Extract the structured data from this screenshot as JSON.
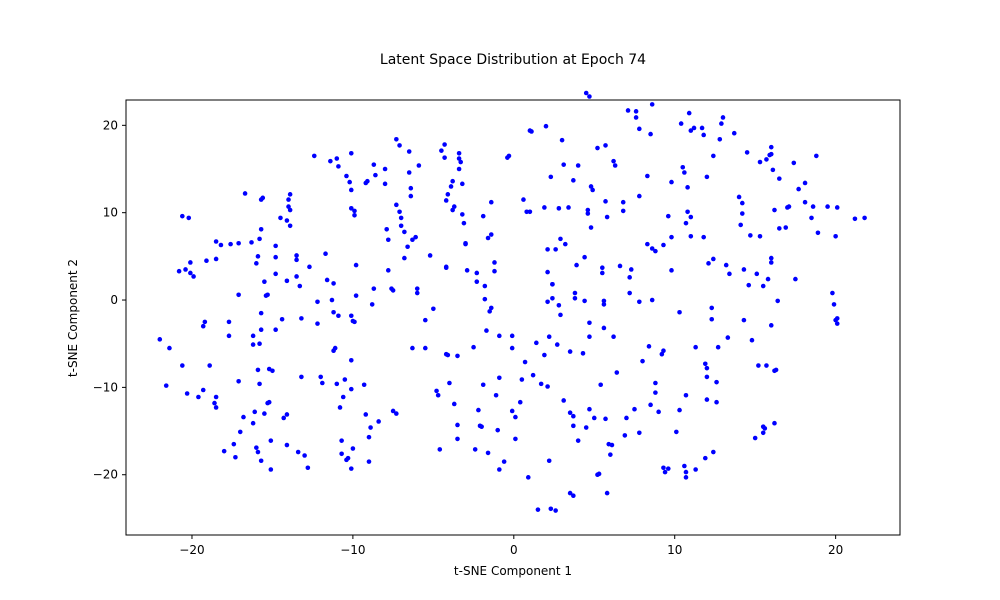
{
  "chart_data": {
    "type": "scatter",
    "title": "Latent Space Distribution at Epoch 74",
    "xlabel": "t-SNE Component 1",
    "ylabel": "t-SNE Component 2",
    "color": "blue",
    "grid": false,
    "xlim": [
      -24.1,
      24.0
    ],
    "ylim": [
      -26.9,
      22.9
    ],
    "xticks": [
      {
        "value": -20,
        "label": "−20"
      },
      {
        "value": -10,
        "label": "−10"
      },
      0,
      10,
      20
    ],
    "yticks": [
      {
        "value": -20,
        "label": "−20"
      },
      {
        "value": -10,
        "label": "−10"
      },
      0,
      10,
      20
    ],
    "x": [
      -22.0,
      -21.4,
      -21.6,
      -20.6,
      -20.3,
      -20.6,
      -20.2,
      -20.1,
      -20.1,
      -19.9,
      -20.8,
      -20.4,
      -19.2,
      -19.3,
      -18.9,
      -19.3,
      -19.6,
      -18.5,
      -18.6,
      -18.5,
      -19.1,
      -18.5,
      -18.5,
      -18.2,
      -17.6,
      -17.7,
      -17.1,
      -17.7,
      -18.0,
      -17.3,
      -17.4,
      -17.1,
      -16.8,
      -17.0,
      -16.7,
      -17.1,
      -16.3,
      -16.2,
      -16.2,
      -16.0,
      -16.2,
      -16.1,
      -16.0,
      -15.7,
      -15.9,
      -15.8,
      -15.9,
      -15.7,
      -15.8,
      -15.9,
      -15.5,
      -15.7,
      -15.7,
      -15.8,
      -15.7,
      -15.6,
      -15.4,
      -15.3,
      -15.3,
      -15.5,
      -15.2,
      -15.2,
      -15.0,
      -15.1,
      -15.1,
      -14.8,
      -14.8,
      -14.8,
      -14.5,
      -14.8,
      -14.4,
      -14.1,
      -14.0,
      -14.0,
      -14.1,
      -13.9,
      -13.9,
      -13.9,
      -14.3,
      -14.1,
      -14.1,
      -13.5,
      -13.5,
      -13.5,
      -13.3,
      -13.2,
      -13.2,
      -13.0,
      -13.4,
      -12.8,
      -12.7,
      -12.4,
      -12.2,
      -12.2,
      -11.9,
      -12.0,
      -11.7,
      -11.6,
      -11.2,
      -11.3,
      -11.2,
      -11.1,
      -11.4,
      -10.9,
      -11.0,
      -11.2,
      -11.0,
      -10.9,
      -10.8,
      -10.7,
      -10.6,
      -10.7,
      -10.5,
      -10.4,
      -10.2,
      -10.1,
      -10.1,
      -10.1,
      -10.1,
      -10.1,
      -10.1,
      -9.9,
      -9.9,
      -9.8,
      -9.8,
      -10.0,
      -10.4,
      -10.3,
      -10.1,
      -9.9,
      -10.0,
      -9.3,
      -9.2,
      -9.1,
      -9.2,
      -9.0,
      -9.0,
      -8.9,
      -8.8,
      -8.7,
      -8.7,
      -8.6,
      -8.4,
      -8.0,
      -8.0,
      -7.9,
      -7.8,
      -7.8,
      -7.6,
      -7.5,
      -7.5,
      -7.3,
      -7.1,
      -7.3,
      -7.3,
      -7.1,
      -7.0,
      -7.0,
      -6.8,
      -6.8,
      -6.5,
      -6.6,
      -6.5,
      -6.4,
      -6.4,
      -6.3,
      -6.3,
      -6.1,
      -5.9,
      -6.0,
      -6.0,
      -5.5,
      -5.5,
      -5.2,
      -5.0,
      -4.8,
      -4.7,
      -4.6,
      -4.3,
      -4.3,
      -4.5,
      -4.2,
      -4.2,
      -4.2,
      -4.2,
      -4.1,
      -4.0,
      -4.1,
      -3.9,
      -3.7,
      -3.8,
      -3.8,
      -3.7,
      -3.5,
      -3.4,
      -3.3,
      -3.4,
      -3.4,
      -3.5,
      -3.5,
      -3.2,
      -3.2,
      -3.1,
      -3.0,
      -2.9,
      -3.0,
      -2.5,
      -2.4,
      -2.3,
      -2.2,
      -2.3,
      -2.1,
      -2.0,
      -1.9,
      -1.9,
      -1.8,
      -1.8,
      -1.7,
      -1.6,
      -1.6,
      -1.4,
      -1.4,
      -1.4,
      -1.5,
      -1.2,
      -1.2,
      -1.1,
      -1.0,
      -0.9,
      -0.9,
      -0.9,
      -0.6,
      -0.4,
      -0.3,
      -0.1,
      -0.1,
      -0.1,
      0.1,
      0.1,
      0.4,
      0.5,
      0.6,
      0.8,
      0.7,
      0.9,
      1.0,
      1.0,
      1.1,
      1.2,
      1.4,
      1.5,
      1.7,
      2.0,
      2.1,
      1.9,
      2.1,
      2.1,
      1.9,
      2.1,
      2.2,
      2.4,
      2.2,
      2.3,
      2.3,
      2.6,
      2.4,
      2.4,
      2.6,
      2.8,
      2.9,
      2.8,
      2.7,
      3.0,
      2.9,
      3.1,
      3.1,
      3.2,
      3.4,
      3.5,
      3.7,
      3.7,
      3.5,
      3.5,
      3.7,
      3.8,
      3.8,
      3.7,
      4.0,
      4.0,
      3.9,
      4.4,
      4.3,
      4.5,
      4.4,
      4.6,
      4.6,
      4.5,
      4.7,
      4.7,
      4.8,
      4.8,
      4.9,
      4.7,
      4.7,
      5.0,
      5.2,
      5.2,
      5.3,
      5.4,
      5.6,
      5.5,
      5.5,
      5.6,
      5.6,
      5.7,
      5.7,
      5.7,
      5.8,
      5.9,
      5.8,
      6.0,
      6.2,
      6.1,
      6.2,
      6.3,
      6.4,
      6.6,
      6.8,
      6.8,
      6.9,
      7.0,
      7.1,
      7.2,
      7.2,
      7.3,
      7.5,
      7.6,
      7.6,
      7.8,
      7.8,
      7.8,
      7.8,
      8.0,
      8.3,
      8.3,
      8.5,
      8.4,
      8.5,
      8.6,
      8.6,
      8.6,
      8.8,
      8.8,
      8.8,
      9.0,
      9.2,
      9.3,
      9.3,
      9.3,
      9.4,
      9.6,
      9.6,
      9.8,
      9.8,
      9.8,
      10.1,
      10.3,
      10.3,
      10.4,
      10.5,
      10.6,
      10.6,
      10.7,
      10.7,
      10.7,
      10.8,
      10.8,
      10.7,
      10.9,
      11.0,
      11.0,
      11.0,
      11.2,
      11.3,
      11.3,
      11.7,
      11.8,
      11.8,
      11.9,
      11.9,
      12.0,
      12.0,
      12.0,
      12.0,
      12.1,
      12.3,
      12.3,
      12.4,
      12.4,
      12.4,
      12.6,
      12.6,
      12.7,
      12.8,
      12.9,
      13.0,
      13.2,
      13.3,
      13.4,
      13.7,
      14.0,
      14.2,
      14.1,
      14.2,
      14.3,
      14.3,
      14.6,
      14.5,
      14.7,
      14.8,
      15.0,
      15.1,
      15.2,
      15.3,
      15.3,
      15.5,
      15.5,
      15.5,
      15.6,
      15.7,
      15.9,
      15.8,
      16.0,
      15.7,
      16.0,
      16.0,
      16.0,
      16.0,
      16.2,
      16.2,
      16.3,
      16.2,
      16.4,
      16.5,
      16.9,
      17.0,
      17.1,
      17.4,
      17.5,
      17.7,
      18.1,
      18.1,
      18.5,
      18.6,
      18.8,
      18.9,
      19.5,
      19.8,
      19.9,
      20.0,
      20.1,
      20.1,
      20.0,
      20.1,
      21.2,
      21.8,
      16.1,
      16.5
    ],
    "values": [
      -4.5,
      -5.5,
      -9.8,
      -7.5,
      -10.7,
      9.6,
      9.4,
      4.3,
      3.1,
      2.7,
      3.3,
      3.5,
      -2.5,
      -3.0,
      -7.5,
      -10.3,
      -11.1,
      -11.1,
      -11.8,
      -12.3,
      4.5,
      6.7,
      4.7,
      6.3,
      6.4,
      -2.5,
      0.6,
      -4.1,
      -17.3,
      -18.0,
      -16.5,
      -9.3,
      -13.4,
      -15.1,
      12.2,
      6.5,
      6.6,
      -5.1,
      -4.1,
      4.2,
      -14.1,
      -12.8,
      -16.9,
      -18.4,
      -8.0,
      -9.6,
      -17.4,
      8.1,
      7.0,
      5.0,
      2.1,
      -1.5,
      -3.4,
      -5.0,
      11.5,
      11.7,
      0.5,
      0.6,
      -11.8,
      -13.0,
      -11.7,
      -7.9,
      -8.1,
      -19.4,
      -16.1,
      3.0,
      6.2,
      4.9,
      9.4,
      -3.4,
      -2.2,
      2.2,
      11.5,
      10.7,
      9.1,
      12.1,
      10.3,
      8.5,
      -13.5,
      -13.1,
      -16.6,
      5.1,
      2.7,
      4.6,
      1.6,
      -2.1,
      -8.8,
      -17.8,
      -17.4,
      -19.2,
      3.8,
      16.5,
      -0.2,
      -2.7,
      -9.5,
      -8.8,
      5.3,
      2.3,
      1.9,
      0.0,
      -5.8,
      -5.5,
      15.9,
      15.3,
      16.2,
      -1.4,
      -9.6,
      -1.8,
      -12.3,
      -16.1,
      -11.1,
      -17.6,
      -9.1,
      14.2,
      13.5,
      10.5,
      16.8,
      12.6,
      -6.9,
      -10.2,
      -19.3,
      10.2,
      9.7,
      0.5,
      4.0,
      -17.0,
      -18.3,
      -18.1,
      -1.8,
      -2.5,
      -2.4,
      -9.7,
      13.4,
      13.6,
      -13.1,
      -15.7,
      -18.5,
      -14.6,
      -0.5,
      1.3,
      15.5,
      14.3,
      -13.9,
      15.0,
      13.3,
      8.1,
      6.9,
      3.4,
      1.3,
      1.1,
      -12.7,
      18.4,
      17.7,
      -13.0,
      10.9,
      10.1,
      9.4,
      8.5,
      7.8,
      4.8,
      17.0,
      6.1,
      14.6,
      11.9,
      12.8,
      6.9,
      -5.5,
      7.2,
      15.4,
      1.3,
      0.8,
      -2.3,
      -5.5,
      5.1,
      -1.0,
      -10.4,
      -10.9,
      -17.1,
      17.8,
      16.3,
      17.1,
      -6.2,
      3.7,
      11.4,
      3.8,
      12.1,
      -9.5,
      -6.3,
      13.0,
      10.7,
      13.6,
      10.3,
      -11.9,
      -6.4,
      16.8,
      15.8,
      16.2,
      15.0,
      -14.3,
      -15.9,
      13.3,
      9.8,
      8.8,
      6.5,
      3.4,
      6.4,
      -5.4,
      -17.1,
      3.1,
      -12.6,
      2.1,
      -14.4,
      -14.5,
      9.6,
      -9.7,
      1.6,
      0.1,
      -3.5,
      -17.5,
      7.1,
      7.5,
      11.2,
      -0.9,
      -1.3,
      4.3,
      3.3,
      -10.9,
      -14.9,
      -4.1,
      -8.9,
      -19.4,
      -18.5,
      16.3,
      16.5,
      -4.1,
      -12.7,
      -5.5,
      -13.4,
      -15.9,
      -11.7,
      -9.1,
      11.5,
      10.1,
      -7.1,
      -20.3,
      10.1,
      19.4,
      19.3,
      -8.6,
      -4.9,
      -24.0,
      -9.6,
      19.9,
      -9.9,
      -6.3,
      3.2,
      -0.2,
      10.6,
      5.8,
      -4.2,
      0.2,
      -18.4,
      -23.9,
      14.1,
      -24.1,
      1.8,
      1.8,
      5.8,
      10.5,
      7.0,
      -0.6,
      -5.1,
      18.3,
      -1.7,
      -11.5,
      15.5,
      6.4,
      10.6,
      -22.1,
      13.7,
      -22.4,
      -5.9,
      -12.9,
      -13.3,
      0.2,
      0.8,
      -14.4,
      15.4,
      -16.1,
      4.0,
      4.9,
      -6.1,
      -14.6,
      -0.1,
      9.9,
      10.3,
      23.7,
      23.3,
      -12.5,
      8.3,
      13.0,
      12.6,
      -2.6,
      -4.2,
      -13.5,
      17.4,
      -20.0,
      -19.9,
      -9.7,
      -0.1,
      3.1,
      3.7,
      -0.5,
      -3.2,
      -13.6,
      11.3,
      17.7,
      9.5,
      -16.5,
      -22.1,
      -17.7,
      -4.2,
      -16.6,
      15.9,
      15.4,
      -8.3,
      3.9,
      10.2,
      11.2,
      -15.5,
      -13.5,
      21.7,
      2.6,
      0.8,
      3.5,
      -12.5,
      21.6,
      20.9,
      -15.2,
      19.6,
      11.9,
      -0.2,
      -7.0,
      14.2,
      6.4,
      19.0,
      -5.3,
      -12.0,
      5.9,
      0.0,
      22.4,
      5.6,
      -9.5,
      -10.6,
      -12.8,
      -6.2,
      -5.8,
      -19.2,
      6.3,
      -19.7,
      9.6,
      -19.3,
      13.5,
      7.2,
      3.4,
      -15.1,
      -12.6,
      -1.4,
      20.2,
      15.2,
      -19.0,
      14.6,
      -10.9,
      -20.3,
      8.8,
      10.1,
      12.9,
      -19.7,
      21.4,
      7.3,
      9.5,
      19.4,
      19.7,
      -19.4,
      -5.4,
      19.7,
      18.9,
      7.2,
      -7.3,
      -18.1,
      14.1,
      -11.4,
      -7.8,
      -8.8,
      4.2,
      -0.9,
      -2.2,
      16.5,
      -17.4,
      4.7,
      -9.4,
      -11.7,
      -5.4,
      18.4,
      20.2,
      20.9,
      4.0,
      -4.3,
      3.0,
      19.1,
      11.8,
      11.1,
      8.6,
      9.9,
      3.5,
      -2.3,
      1.7,
      16.9,
      7.4,
      -4.6,
      -15.8,
      3.0,
      -7.5,
      15.8,
      7.3,
      1.6,
      -15.2,
      -14.5,
      -14.7,
      16.1,
      16.6,
      2.4,
      17.5,
      -7.5,
      -2.9,
      4.8,
      4.3,
      16.7,
      -8.1,
      10.3,
      -8.0,
      -14.1,
      -0.1,
      8.2,
      8.3,
      10.6,
      10.7,
      15.7,
      2.4,
      12.7,
      13.4,
      11.2,
      9.4,
      10.7,
      16.5,
      7.7,
      10.7,
      0.8,
      -0.5,
      -2.3,
      -2.7,
      -2.1,
      7.3,
      10.6,
      9.3,
      9.4,
      14.9,
      13.9
    ]
  }
}
